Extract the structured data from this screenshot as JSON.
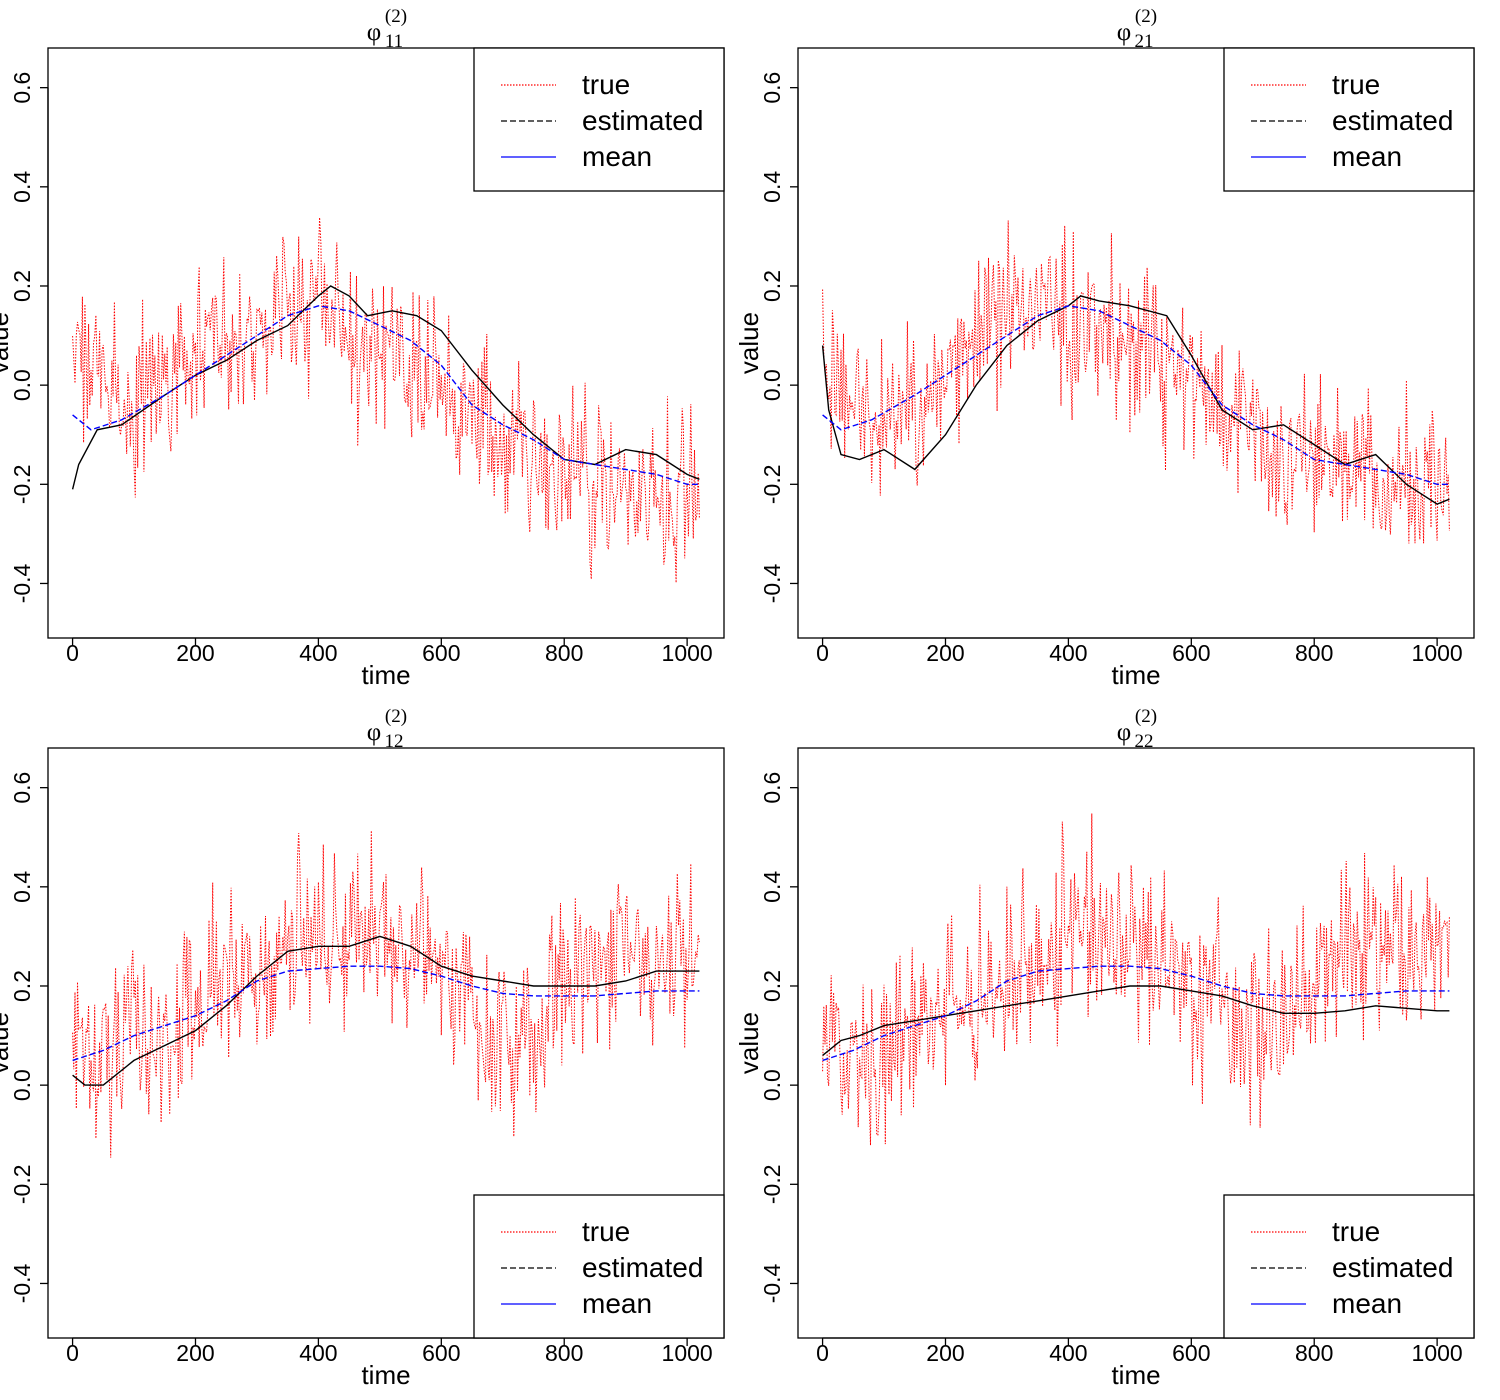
{
  "legend_labels": {
    "true": "true",
    "estimated": "estimated",
    "mean": "mean"
  },
  "colors": {
    "true": "#ff0000",
    "estimated": "#000000",
    "mean": "#0000ff",
    "axis": "#000000"
  },
  "chart_data": [
    {
      "type": "line",
      "title": {
        "symbol": "φ",
        "superscript": "(2)",
        "subscript": "11"
      },
      "xlabel": "time",
      "ylabel": "value",
      "xlim": [
        -40,
        1060
      ],
      "ylim": [
        -0.51,
        0.68
      ],
      "xticks": [
        0,
        200,
        400,
        600,
        800,
        1000
      ],
      "yticks": [
        -0.4,
        -0.2,
        0.0,
        0.2,
        0.4,
        0.6
      ],
      "xtick_labels": [
        "0",
        "200",
        "400",
        "600",
        "800",
        "1000"
      ],
      "ytick_labels": [
        "-0.4",
        "-0.2",
        "0.0",
        "0.2",
        "0.4",
        "0.6"
      ],
      "legend_position": "top-right",
      "series": [
        {
          "name": "true",
          "style": "dotted",
          "color": "#ff0000",
          "noise": 0.1,
          "x": [
            0,
            100,
            200,
            300,
            400,
            500,
            600,
            700,
            800,
            900,
            1020
          ],
          "y": [
            0.08,
            -0.05,
            0.05,
            0.15,
            0.17,
            0.08,
            0.0,
            -0.12,
            -0.17,
            -0.2,
            -0.22
          ]
        },
        {
          "name": "estimated",
          "style": "solid",
          "color": "#000000",
          "x": [
            0,
            10,
            40,
            80,
            150,
            200,
            250,
            300,
            350,
            400,
            420,
            450,
            480,
            520,
            560,
            600,
            650,
            700,
            750,
            800,
            850,
            900,
            950,
            1000,
            1020
          ],
          "y": [
            -0.21,
            -0.16,
            -0.09,
            -0.08,
            -0.02,
            0.02,
            0.05,
            0.09,
            0.12,
            0.18,
            0.2,
            0.18,
            0.14,
            0.15,
            0.14,
            0.11,
            0.03,
            -0.04,
            -0.1,
            -0.15,
            -0.16,
            -0.13,
            -0.14,
            -0.18,
            -0.19
          ]
        },
        {
          "name": "mean",
          "style": "dashed",
          "color": "#0000ff",
          "x": [
            0,
            30,
            80,
            150,
            200,
            250,
            300,
            350,
            400,
            450,
            500,
            550,
            600,
            650,
            700,
            750,
            800,
            850,
            900,
            950,
            1000,
            1020
          ],
          "y": [
            -0.06,
            -0.09,
            -0.07,
            -0.02,
            0.02,
            0.06,
            0.1,
            0.14,
            0.16,
            0.15,
            0.12,
            0.09,
            0.04,
            -0.04,
            -0.08,
            -0.11,
            -0.15,
            -0.16,
            -0.17,
            -0.18,
            -0.2,
            -0.2
          ]
        }
      ]
    },
    {
      "type": "line",
      "title": {
        "symbol": "φ",
        "superscript": "(2)",
        "subscript": "21"
      },
      "xlabel": "time",
      "ylabel": "value",
      "xlim": [
        -40,
        1060
      ],
      "ylim": [
        -0.51,
        0.68
      ],
      "xticks": [
        0,
        200,
        400,
        600,
        800,
        1000
      ],
      "yticks": [
        -0.4,
        -0.2,
        0.0,
        0.2,
        0.4,
        0.6
      ],
      "xtick_labels": [
        "0",
        "200",
        "400",
        "600",
        "800",
        "1000"
      ],
      "ytick_labels": [
        "-0.4",
        "-0.2",
        "0.0",
        "0.2",
        "0.4",
        "0.6"
      ],
      "legend_position": "top-right",
      "series": [
        {
          "name": "true",
          "style": "dotted",
          "color": "#ff0000",
          "noise": 0.1,
          "x": [
            0,
            100,
            200,
            300,
            400,
            500,
            600,
            700,
            800,
            900,
            1020
          ],
          "y": [
            0.05,
            -0.1,
            0.05,
            0.16,
            0.15,
            0.1,
            0.0,
            -0.1,
            -0.15,
            -0.18,
            -0.22
          ]
        },
        {
          "name": "estimated",
          "style": "solid",
          "color": "#000000",
          "x": [
            0,
            10,
            30,
            60,
            100,
            150,
            200,
            250,
            300,
            350,
            400,
            420,
            450,
            500,
            560,
            600,
            650,
            700,
            750,
            800,
            850,
            900,
            950,
            1000,
            1020
          ],
          "y": [
            0.08,
            -0.05,
            -0.14,
            -0.15,
            -0.13,
            -0.17,
            -0.1,
            0.0,
            0.08,
            0.13,
            0.16,
            0.18,
            0.17,
            0.16,
            0.14,
            0.06,
            -0.05,
            -0.09,
            -0.08,
            -0.12,
            -0.16,
            -0.14,
            -0.2,
            -0.24,
            -0.23
          ]
        },
        {
          "name": "mean",
          "style": "dashed",
          "color": "#0000ff",
          "x": [
            0,
            30,
            80,
            150,
            200,
            250,
            300,
            350,
            400,
            450,
            500,
            550,
            600,
            650,
            700,
            750,
            800,
            850,
            900,
            950,
            1000,
            1020
          ],
          "y": [
            -0.06,
            -0.09,
            -0.07,
            -0.02,
            0.02,
            0.06,
            0.1,
            0.14,
            0.16,
            0.15,
            0.12,
            0.09,
            0.04,
            -0.04,
            -0.08,
            -0.11,
            -0.15,
            -0.16,
            -0.17,
            -0.18,
            -0.2,
            -0.2
          ]
        }
      ]
    },
    {
      "type": "line",
      "title": {
        "symbol": "φ",
        "superscript": "(2)",
        "subscript": "12"
      },
      "xlabel": "time",
      "ylabel": "value",
      "xlim": [
        -40,
        1060
      ],
      "ylim": [
        -0.51,
        0.68
      ],
      "xticks": [
        0,
        200,
        400,
        600,
        800,
        1000
      ],
      "yticks": [
        -0.4,
        -0.2,
        0.0,
        0.2,
        0.4,
        0.6
      ],
      "xtick_labels": [
        "0",
        "200",
        "400",
        "600",
        "800",
        "1000"
      ],
      "ytick_labels": [
        "-0.4",
        "-0.2",
        "0.0",
        "0.2",
        "0.4",
        "0.6"
      ],
      "legend_position": "bottom-right",
      "series": [
        {
          "name": "true",
          "style": "dotted",
          "color": "#ff0000",
          "noise": 0.11,
          "x": [
            0,
            100,
            200,
            300,
            400,
            500,
            600,
            700,
            800,
            900,
            1020
          ],
          "y": [
            0.05,
            0.08,
            0.15,
            0.24,
            0.3,
            0.3,
            0.22,
            0.08,
            0.2,
            0.28,
            0.27
          ]
        },
        {
          "name": "estimated",
          "style": "solid",
          "color": "#000000",
          "x": [
            0,
            20,
            50,
            100,
            150,
            200,
            250,
            300,
            350,
            400,
            450,
            500,
            550,
            600,
            650,
            700,
            750,
            800,
            850,
            900,
            950,
            1000,
            1020
          ],
          "y": [
            0.02,
            0.0,
            0.0,
            0.05,
            0.08,
            0.11,
            0.16,
            0.22,
            0.27,
            0.28,
            0.28,
            0.3,
            0.28,
            0.24,
            0.22,
            0.21,
            0.2,
            0.2,
            0.2,
            0.21,
            0.23,
            0.23,
            0.23
          ]
        },
        {
          "name": "mean",
          "style": "dashed",
          "color": "#0000ff",
          "x": [
            0,
            50,
            100,
            150,
            200,
            250,
            300,
            350,
            400,
            450,
            500,
            550,
            600,
            650,
            700,
            750,
            800,
            850,
            900,
            950,
            1000,
            1020
          ],
          "y": [
            0.05,
            0.07,
            0.1,
            0.12,
            0.14,
            0.17,
            0.21,
            0.23,
            0.235,
            0.24,
            0.24,
            0.235,
            0.22,
            0.2,
            0.185,
            0.18,
            0.18,
            0.18,
            0.185,
            0.19,
            0.19,
            0.19
          ]
        }
      ]
    },
    {
      "type": "line",
      "title": {
        "symbol": "φ",
        "superscript": "(2)",
        "subscript": "22"
      },
      "xlabel": "time",
      "ylabel": "value",
      "xlim": [
        -40,
        1060
      ],
      "ylim": [
        -0.51,
        0.68
      ],
      "xticks": [
        0,
        200,
        400,
        600,
        800,
        1000
      ],
      "yticks": [
        -0.4,
        -0.2,
        0.0,
        0.2,
        0.4,
        0.6
      ],
      "xtick_labels": [
        "0",
        "200",
        "400",
        "600",
        "800",
        "1000"
      ],
      "ytick_labels": [
        "-0.4",
        "-0.2",
        "0.0",
        "0.2",
        "0.4",
        "0.6"
      ],
      "legend_position": "bottom-right",
      "series": [
        {
          "name": "true",
          "style": "dotted",
          "color": "#ff0000",
          "noise": 0.11,
          "x": [
            0,
            100,
            200,
            300,
            400,
            500,
            600,
            700,
            800,
            900,
            1020
          ],
          "y": [
            0.05,
            0.08,
            0.15,
            0.22,
            0.32,
            0.33,
            0.2,
            0.1,
            0.2,
            0.3,
            0.28
          ]
        },
        {
          "name": "estimated",
          "style": "solid",
          "color": "#000000",
          "x": [
            0,
            30,
            60,
            100,
            150,
            200,
            250,
            300,
            350,
            400,
            450,
            500,
            550,
            600,
            650,
            700,
            750,
            800,
            850,
            900,
            950,
            1000,
            1020
          ],
          "y": [
            0.06,
            0.09,
            0.1,
            0.12,
            0.13,
            0.14,
            0.15,
            0.16,
            0.17,
            0.18,
            0.19,
            0.2,
            0.2,
            0.19,
            0.18,
            0.16,
            0.145,
            0.145,
            0.15,
            0.16,
            0.155,
            0.15,
            0.15
          ]
        },
        {
          "name": "mean",
          "style": "dashed",
          "color": "#0000ff",
          "x": [
            0,
            50,
            100,
            150,
            200,
            250,
            300,
            350,
            400,
            450,
            500,
            550,
            600,
            650,
            700,
            750,
            800,
            850,
            900,
            950,
            1000,
            1020
          ],
          "y": [
            0.05,
            0.07,
            0.1,
            0.12,
            0.14,
            0.17,
            0.21,
            0.23,
            0.235,
            0.24,
            0.24,
            0.235,
            0.22,
            0.2,
            0.185,
            0.18,
            0.18,
            0.18,
            0.185,
            0.19,
            0.19,
            0.19
          ]
        }
      ]
    }
  ]
}
